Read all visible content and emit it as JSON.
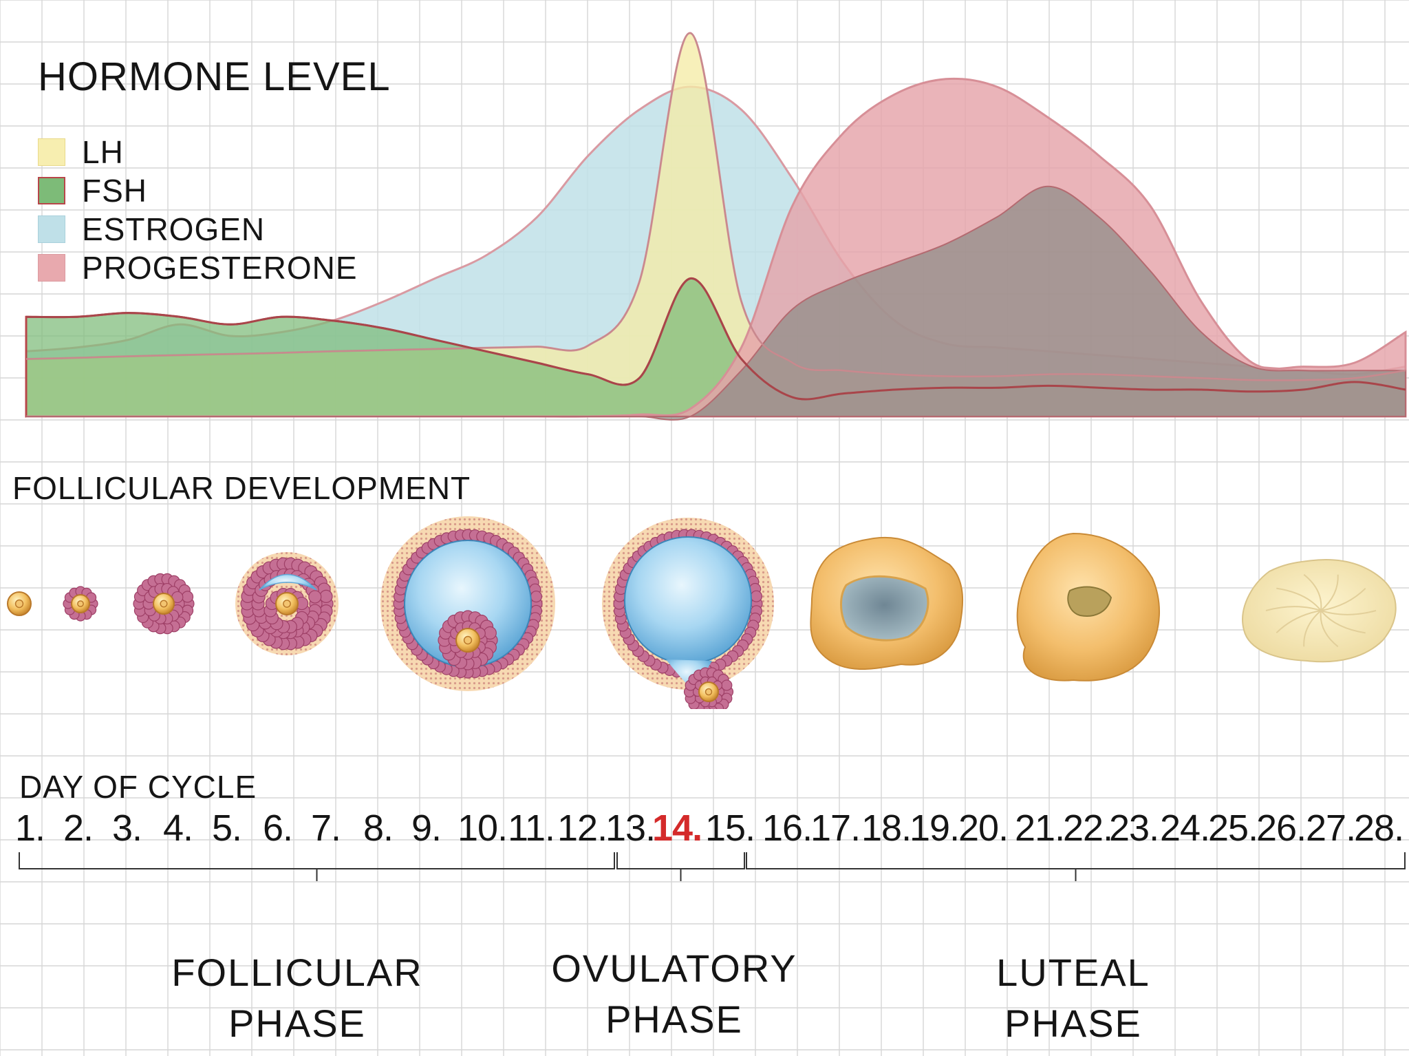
{
  "title": "HORMONE LEVEL",
  "legend": [
    {
      "label": "LH",
      "color": "#f7eeb0",
      "stroke": "#e8d98a"
    },
    {
      "label": "FSH",
      "color": "#7dbb78",
      "stroke": "#b8464a"
    },
    {
      "label": "ESTROGEN",
      "color": "#bfe0e8",
      "stroke": "#a9d0db"
    },
    {
      "label": "PROGESTERONE",
      "color": "#e8a9ae",
      "stroke": "#dc9aa0"
    }
  ],
  "follicular_title": "FOLLICULAR DEVELOPMENT",
  "day_title": "DAY OF CYCLE",
  "days": [
    "1.",
    "2.",
    "3.",
    "4.",
    "5.",
    "6.",
    "7.",
    "8.",
    "9.",
    "10.",
    "11.",
    "12.",
    "13.",
    "14.",
    "15.",
    "16.",
    "17.",
    "18.",
    "19.",
    "20.",
    "21.",
    "22.",
    "23.",
    "24.",
    "25.",
    "26.",
    "27.",
    "28."
  ],
  "highlight_day": "14.",
  "phases": {
    "follicular": [
      "FOLLICULAR",
      "PHASE"
    ],
    "ovulatory": [
      "OVULATORY",
      "PHASE"
    ],
    "luteal": [
      "LUTEAL",
      "PHASE"
    ]
  },
  "chart_data": {
    "type": "area",
    "title": "HORMONE LEVEL",
    "x": [
      1,
      2,
      3,
      4,
      5,
      6,
      7,
      8,
      9,
      10,
      11,
      12,
      13,
      14,
      15,
      16,
      17,
      18,
      19,
      20,
      21,
      22,
      23,
      24,
      25,
      26,
      27,
      28
    ],
    "xlabel": "DAY OF CYCLE",
    "ylabel": "",
    "ylim": [
      0,
      100
    ],
    "series": [
      {
        "name": "ESTROGEN",
        "values": [
          17,
          18,
          20,
          24,
          21,
          22,
          25,
          30,
          36,
          42,
          52,
          68,
          80,
          86,
          80,
          62,
          40,
          25,
          19,
          18,
          17,
          16,
          15,
          14,
          13,
          12,
          11,
          13
        ]
      },
      {
        "name": "LH",
        "values": [
          15,
          15.3,
          15.7,
          16,
          16.3,
          16.6,
          17,
          17.3,
          17.6,
          17.9,
          18.2,
          18.5,
          35,
          100,
          30,
          14,
          12,
          11,
          10.5,
          10.5,
          11,
          11,
          10.5,
          10,
          9.5,
          9.5,
          10,
          12
        ]
      },
      {
        "name": "FSH",
        "values": [
          26,
          26,
          27,
          26,
          24,
          26,
          25,
          23,
          20,
          17,
          14,
          11,
          10,
          36,
          15,
          5,
          6,
          7,
          7.5,
          7.5,
          8,
          7.5,
          7,
          7,
          6.5,
          7,
          9,
          7
        ]
      },
      {
        "name": "PROGESTERONE",
        "values": [
          0,
          0,
          0,
          0,
          0,
          0,
          0,
          0,
          0,
          0,
          0,
          0,
          0.5,
          2,
          18,
          55,
          74,
          84,
          88,
          86,
          78,
          68,
          55,
          30,
          14,
          13,
          14,
          22
        ]
      },
      {
        "name": "PROGESTERONE OVERLAP",
        "values": [
          0,
          0,
          0,
          0,
          0,
          0,
          0,
          0,
          0,
          0,
          0,
          0,
          0,
          0,
          12,
          28,
          35,
          40,
          45,
          52,
          60,
          52,
          38,
          22,
          13,
          12,
          12,
          12
        ]
      }
    ]
  }
}
